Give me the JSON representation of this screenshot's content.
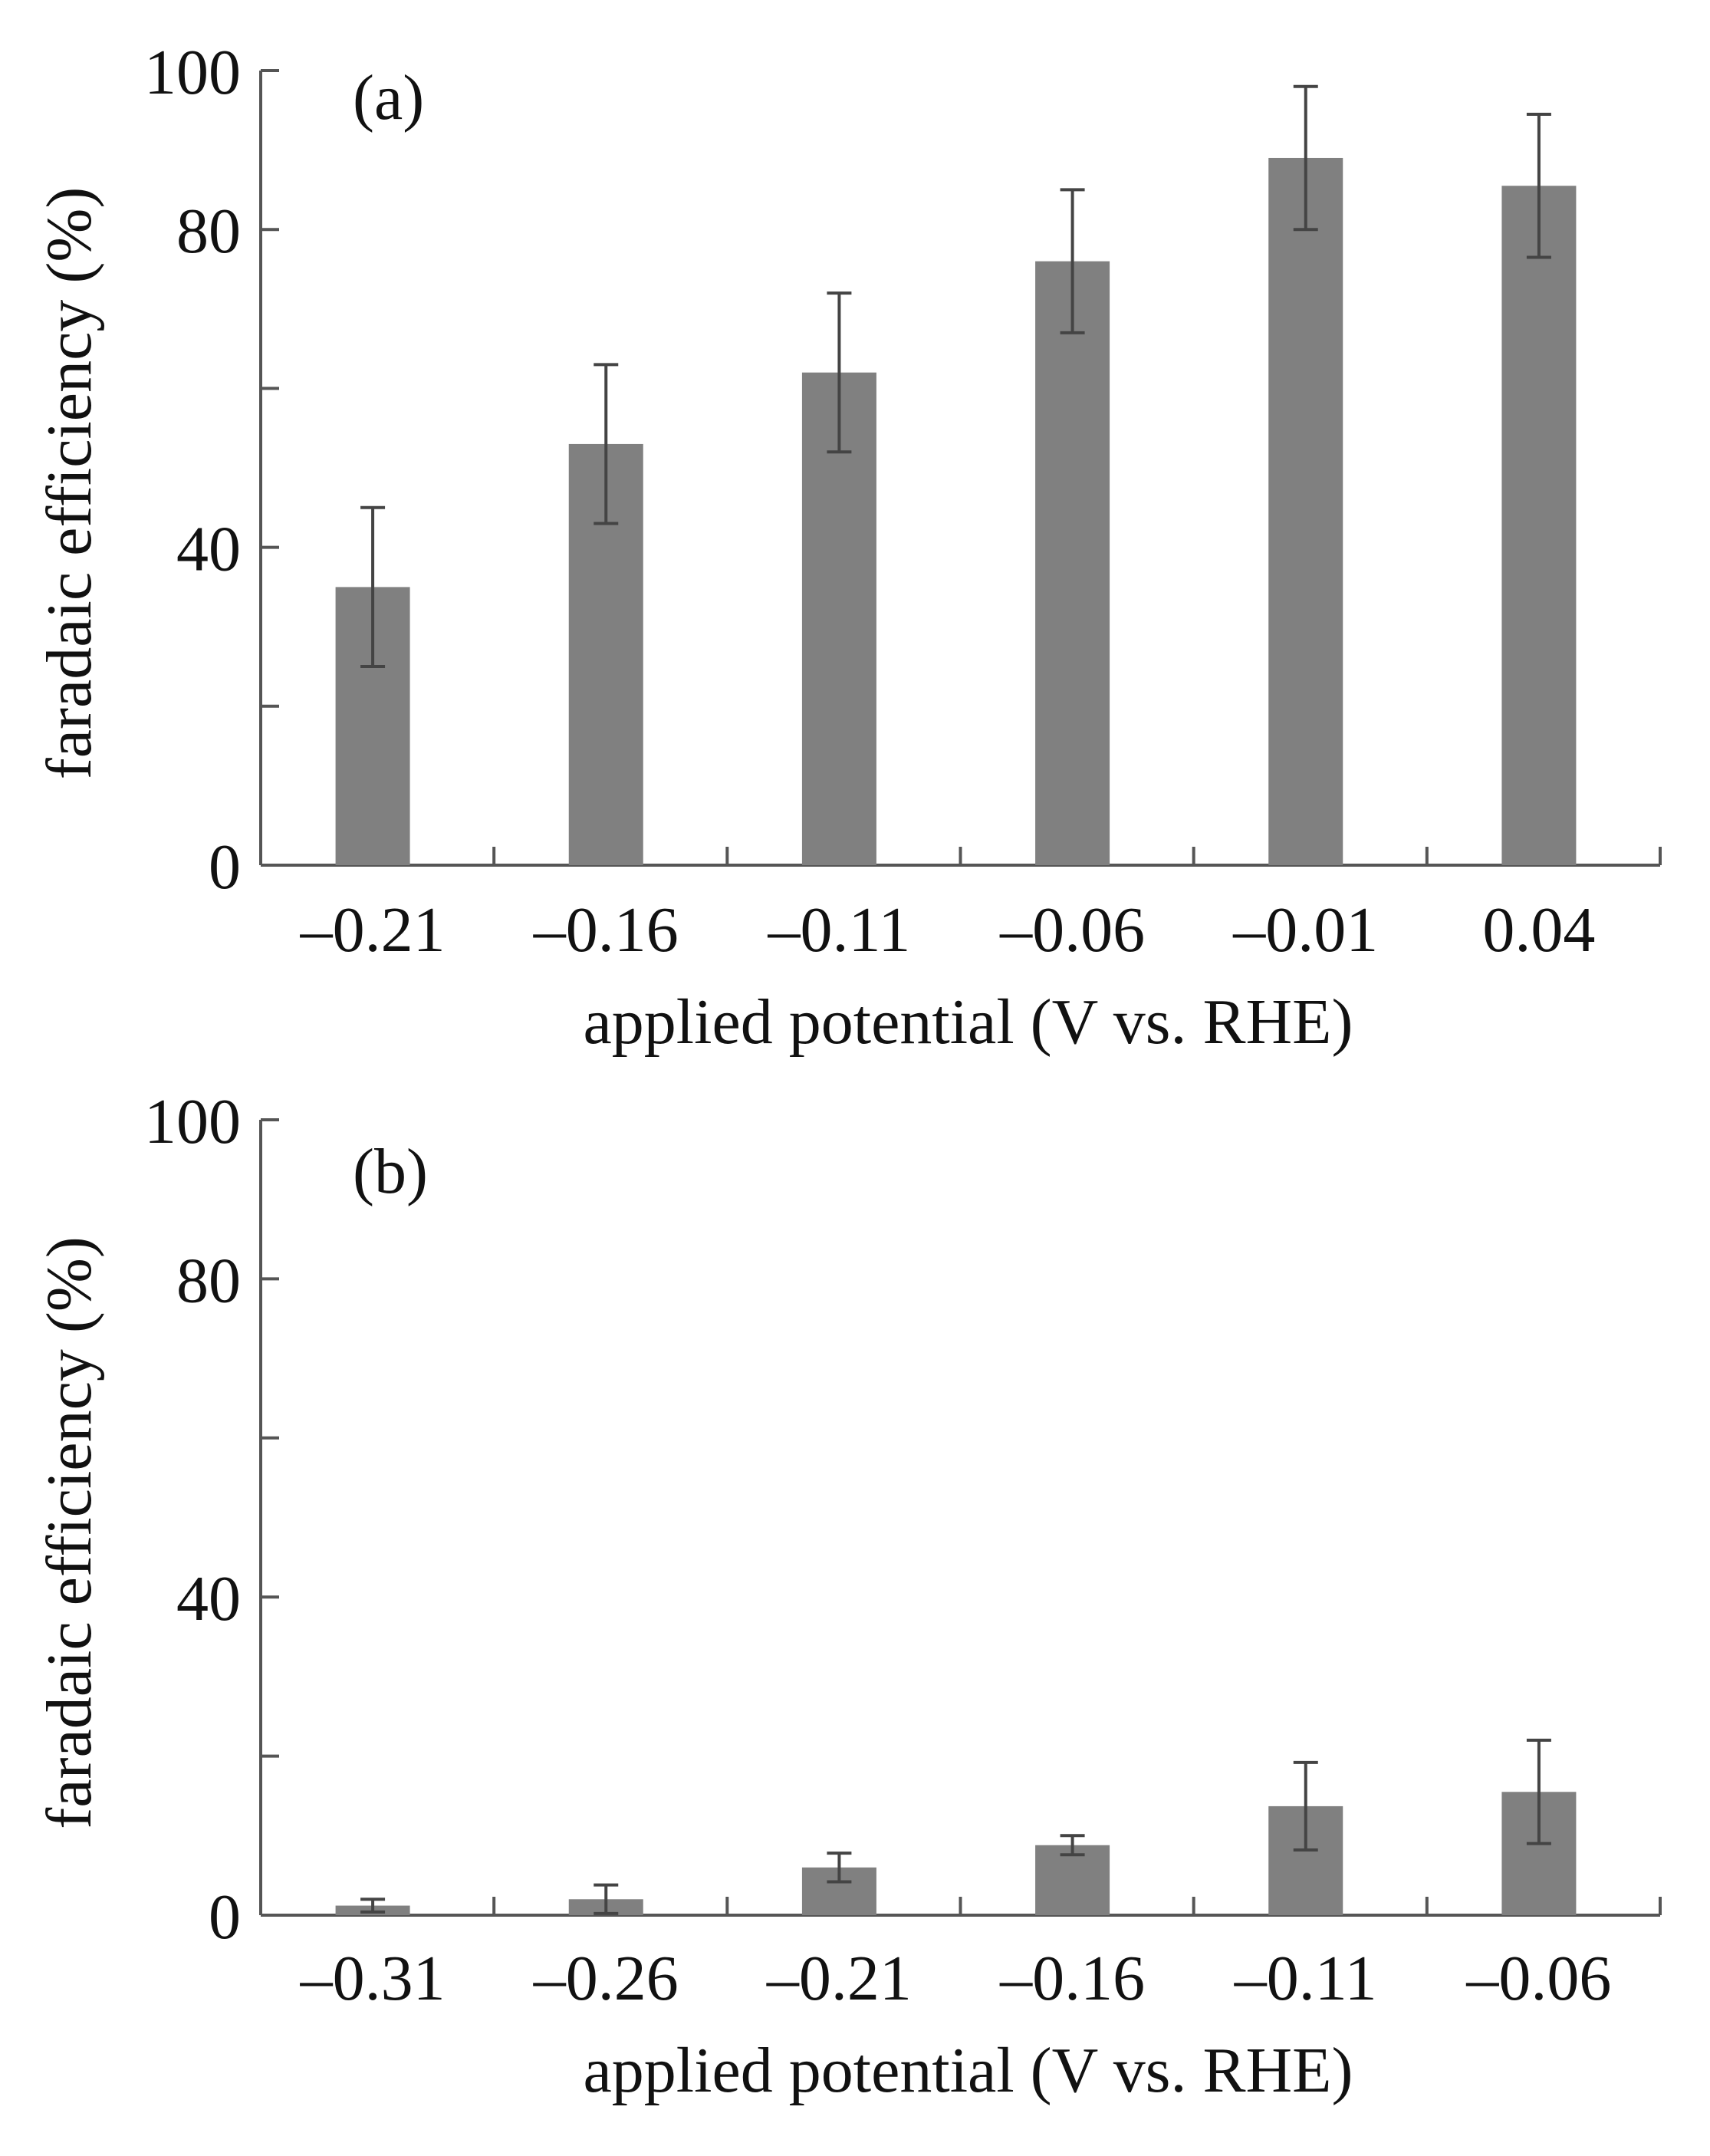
{
  "colors": {
    "bar": "#808080",
    "axis": "#555555",
    "error": "#444444",
    "text": "#111111"
  },
  "chart_data": [
    {
      "type": "bar",
      "panel_label": "(a)",
      "categories": [
        "–0.21",
        "–0.16",
        "–0.11",
        "–0.06",
        "–0.01",
        "0.04"
      ],
      "values": [
        35,
        53,
        62,
        76,
        89,
        85.5
      ],
      "errors": [
        10,
        10,
        10,
        9,
        9,
        9
      ],
      "xlabel": "applied potential (V vs. RHE)",
      "ylabel": "faradaic efficiency (%)",
      "ylim": [
        0,
        100
      ],
      "yticks": [
        0,
        20,
        40,
        60,
        80,
        100
      ],
      "ytick_labels": [
        "0",
        "",
        "40",
        "",
        "80",
        "100"
      ],
      "grid": false
    },
    {
      "type": "bar",
      "panel_label": "(b)",
      "categories": [
        "–0.31",
        "–0.26",
        "–0.21",
        "–0.16",
        "–0.11",
        "–0.06"
      ],
      "values": [
        1.2,
        2,
        6,
        8.8,
        13.7,
        15.5
      ],
      "errors": [
        0.8,
        1.8,
        1.8,
        1.2,
        5.5,
        6.5
      ],
      "xlabel": "applied potential (V vs. RHE)",
      "ylabel": "faradaic efficiency (%)",
      "ylim": [
        0,
        100
      ],
      "yticks": [
        0,
        20,
        40,
        60,
        80,
        100
      ],
      "ytick_labels": [
        "0",
        "",
        "40",
        "",
        "80",
        "100"
      ],
      "grid": false
    }
  ]
}
